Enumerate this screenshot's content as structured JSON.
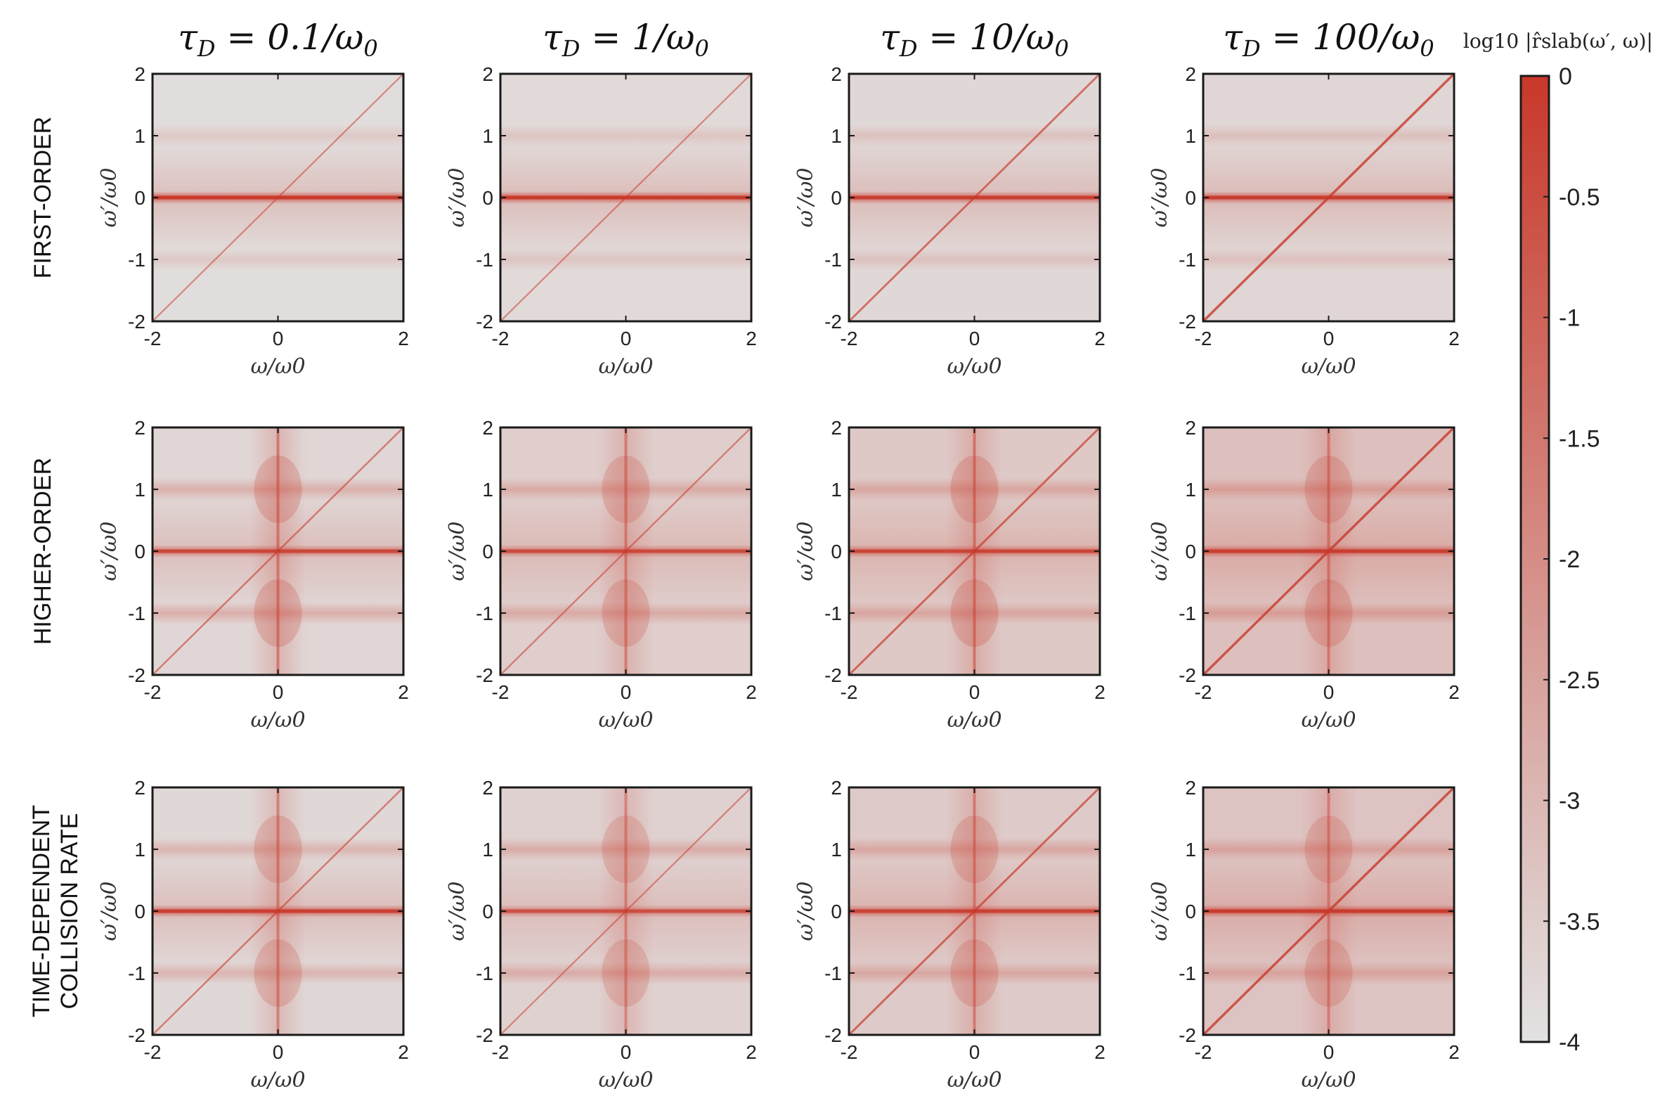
{
  "chart_data": {
    "type": "heatmap",
    "title": "",
    "column_titles": [
      "τD = 0.1/ω0",
      "τD = 1/ω0",
      "τD = 10/ω0",
      "τD = 100/ω0"
    ],
    "column_title_parts": [
      {
        "prefix": "τ",
        "sub": "D",
        "mid": " = 0.1/ω",
        "sub2": "0"
      },
      {
        "prefix": "τ",
        "sub": "D",
        "mid": " = 1/ω",
        "sub2": "0"
      },
      {
        "prefix": "τ",
        "sub": "D",
        "mid": " = 10/ω",
        "sub2": "0"
      },
      {
        "prefix": "τ",
        "sub": "D",
        "mid": " = 100/ω",
        "sub2": "0"
      }
    ],
    "row_titles": [
      [
        "FIRST-ORDER"
      ],
      [
        "HIGHER-ORDER"
      ],
      [
        "TIME-DEPENDENT",
        "COLLISION RATE"
      ]
    ],
    "xlabel": "ω/ω0",
    "ylabel": "ω′/ω0",
    "xlim": [
      -2,
      2
    ],
    "ylim": [
      -2,
      2
    ],
    "xticks": [
      "-2",
      "0",
      "2"
    ],
    "yticks": [
      "-2",
      "-1",
      "0",
      "1",
      "2"
    ],
    "colorbar": {
      "label": "log10 |r̂slab(ω′, ω)|",
      "min": -4,
      "max": 0,
      "ticks": [
        "0",
        "-0.5",
        "-1",
        "-1.5",
        "-2",
        "-2.5",
        "-3",
        "-3.5",
        "-4"
      ],
      "color_low": "#e2e2e2",
      "color_high": "#c8382a"
    },
    "panels_note": "each panel: strong line at ω′=0, diagonal ω′=ω, bands at ω′=±1; higher-order rows add vertical line at ω=0; diagonal strength grows with τD",
    "panel_params": [
      [
        {
          "bg": 0.03,
          "h0": 1.0,
          "diag": 0.3,
          "pm1": 0.28,
          "v0": 0.0
        },
        {
          "bg": 0.05,
          "h0": 1.0,
          "diag": 0.3,
          "pm1": 0.3,
          "v0": 0.0
        },
        {
          "bg": 0.06,
          "h0": 0.95,
          "diag": 0.55,
          "pm1": 0.32,
          "v0": 0.0
        },
        {
          "bg": 0.07,
          "h0": 0.95,
          "diag": 0.8,
          "pm1": 0.32,
          "v0": 0.0
        }
      ],
      [
        {
          "bg": 0.07,
          "h0": 0.8,
          "diag": 0.4,
          "pm1": 0.55,
          "v0": 0.6
        },
        {
          "bg": 0.12,
          "h0": 0.75,
          "diag": 0.35,
          "pm1": 0.55,
          "v0": 0.55
        },
        {
          "bg": 0.15,
          "h0": 0.8,
          "diag": 0.6,
          "pm1": 0.55,
          "v0": 0.6
        },
        {
          "bg": 0.2,
          "h0": 0.9,
          "diag": 0.8,
          "pm1": 0.6,
          "v0": 0.55
        }
      ],
      [
        {
          "bg": 0.06,
          "h0": 0.9,
          "diag": 0.4,
          "pm1": 0.5,
          "v0": 0.55
        },
        {
          "bg": 0.1,
          "h0": 0.7,
          "diag": 0.3,
          "pm1": 0.55,
          "v0": 0.5
        },
        {
          "bg": 0.14,
          "h0": 0.85,
          "diag": 0.6,
          "pm1": 0.55,
          "v0": 0.55
        },
        {
          "bg": 0.18,
          "h0": 0.95,
          "diag": 0.8,
          "pm1": 0.55,
          "v0": 0.5
        }
      ]
    ]
  }
}
